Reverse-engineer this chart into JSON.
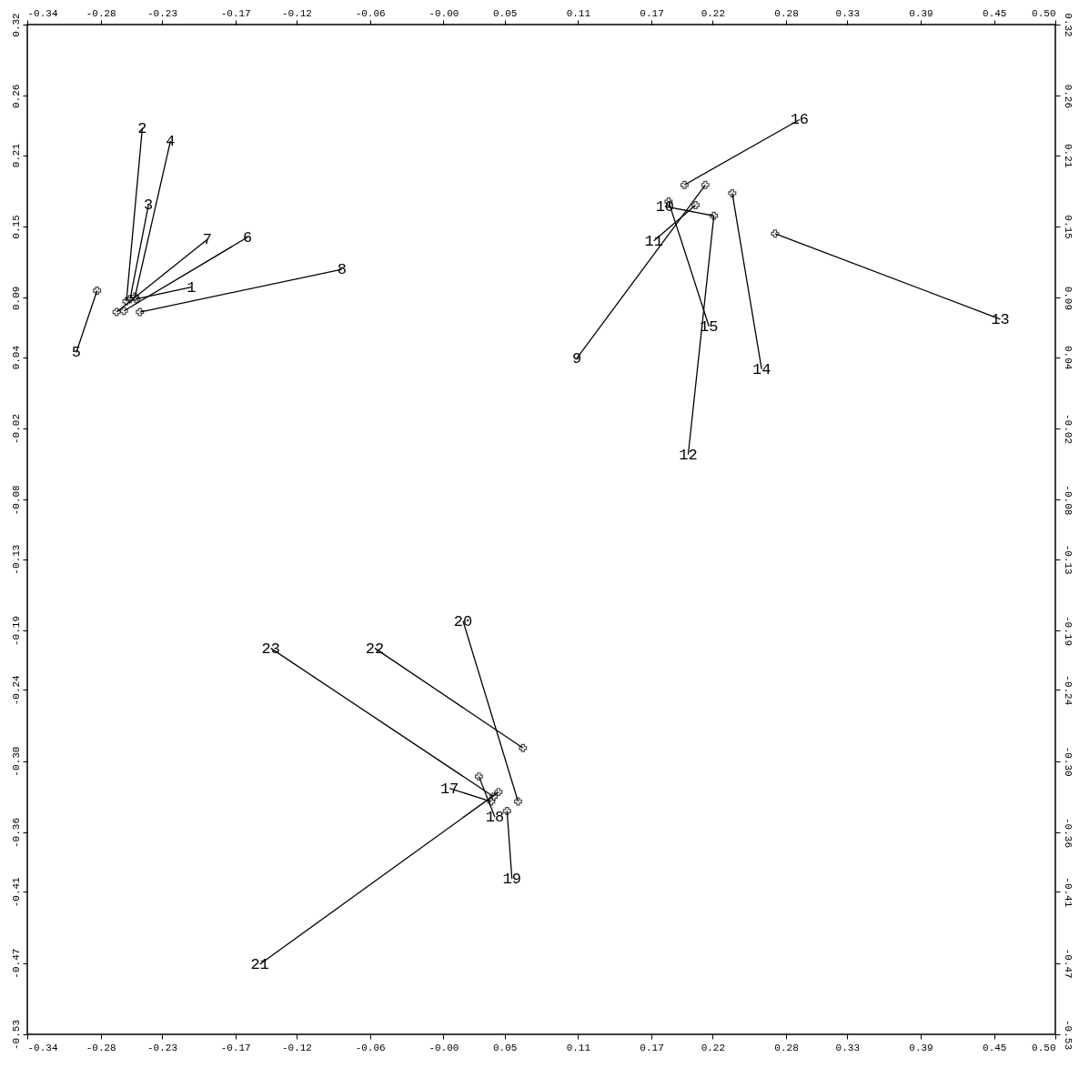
{
  "chart_data": {
    "type": "line",
    "grid": false,
    "legend": false,
    "line_style": "solid",
    "xlim": [
      -0.34,
      0.5
    ],
    "ylim": [
      -0.53,
      0.32
    ],
    "x2lim": [
      -0.34,
      0.5
    ],
    "y2lim": [
      -0.53,
      0.32
    ],
    "xticks": [
      -0.34,
      -0.28,
      -0.23,
      -0.17,
      -0.12,
      -0.06,
      {
        "value": 0,
        "label": "-0.00"
      },
      0.05,
      0.11,
      0.17,
      0.22,
      0.28,
      0.33,
      0.39,
      0.45,
      {
        "value": 0.5,
        "label": "0.50"
      }
    ],
    "x2ticks": [
      -0.34,
      -0.28,
      -0.23,
      -0.17,
      -0.12,
      -0.06,
      {
        "value": 0,
        "label": "-0.00"
      },
      0.05,
      0.11,
      0.17,
      0.22,
      0.28,
      0.33,
      0.39,
      0.45,
      {
        "value": 0.5,
        "label": "0.50"
      }
    ],
    "yticks": [
      0.32,
      0.26,
      0.21,
      0.15,
      0.09,
      0.04,
      -0.02,
      -0.08,
      -0.13,
      -0.19,
      -0.24,
      {
        "value": -0.3,
        "label": "-0.30"
      },
      -0.36,
      -0.41,
      -0.47,
      -0.53
    ],
    "y2ticks": [
      0.32,
      0.26,
      0.21,
      0.15,
      0.09,
      0.04,
      -0.02,
      -0.08,
      -0.13,
      -0.19,
      -0.24,
      {
        "value": -0.3,
        "label": "-0.30"
      },
      -0.36,
      -0.41,
      -0.47,
      -0.53
    ],
    "series": [
      {
        "name": "1",
        "color": "#000000",
        "x": [
          -0.251,
          -0.206
        ],
        "values": [
          0.089,
          0.099
        ]
      },
      {
        "name": "2",
        "color": "#000000",
        "x": [
          -0.259,
          -0.246
        ],
        "values": [
          0.087,
          0.233
        ]
      },
      {
        "name": "3",
        "color": "#000000",
        "x": [
          -0.256,
          -0.241
        ],
        "values": [
          0.089,
          0.168
        ]
      },
      {
        "name": "4",
        "color": "#000000",
        "x": [
          -0.252,
          -0.223
        ],
        "values": [
          0.091,
          0.222
        ]
      },
      {
        "name": "5",
        "color": "#000000",
        "x": [
          -0.283,
          -0.3
        ],
        "values": [
          0.096,
          0.044
        ]
      },
      {
        "name": "6",
        "color": "#000000",
        "x": [
          -0.261,
          -0.16
        ],
        "values": [
          0.079,
          0.141
        ]
      },
      {
        "name": "7",
        "color": "#000000",
        "x": [
          -0.267,
          -0.193
        ],
        "values": [
          0.078,
          0.139
        ]
      },
      {
        "name": "8",
        "color": "#000000",
        "x": [
          -0.248,
          -0.083
        ],
        "values": [
          0.078,
          0.114
        ]
      },
      {
        "name": "9",
        "color": "#000000",
        "x": [
          0.214,
          0.109
        ],
        "values": [
          0.185,
          0.039
        ]
      },
      {
        "name": "10",
        "color": "#000000",
        "x": [
          0.221,
          0.181
        ],
        "values": [
          0.159,
          0.167
        ]
      },
      {
        "name": "11",
        "color": "#000000",
        "x": [
          0.206,
          0.172
        ],
        "values": [
          0.168,
          0.138
        ]
      },
      {
        "name": "12",
        "color": "#000000",
        "x": [
          0.221,
          0.2
        ],
        "values": [
          0.159,
          -0.042
        ]
      },
      {
        "name": "13",
        "color": "#000000",
        "x": [
          0.271,
          0.455
        ],
        "values": [
          0.144,
          0.072
        ]
      },
      {
        "name": "14",
        "color": "#000000",
        "x": [
          0.236,
          0.26
        ],
        "values": [
          0.178,
          0.03
        ]
      },
      {
        "name": "15",
        "color": "#000000",
        "x": [
          0.184,
          0.217
        ],
        "values": [
          0.171,
          0.066
        ]
      },
      {
        "name": "16",
        "color": "#000000",
        "x": [
          0.197,
          0.291
        ],
        "values": [
          0.185,
          0.24
        ]
      },
      {
        "name": "17",
        "color": "#000000",
        "x": [
          0.039,
          0.005
        ],
        "values": [
          -0.334,
          -0.323
        ]
      },
      {
        "name": "18",
        "color": "#000000",
        "x": [
          0.029,
          0.042
        ],
        "values": [
          -0.313,
          -0.347
        ]
      },
      {
        "name": "19",
        "color": "#000000",
        "x": [
          0.052,
          0.056
        ],
        "values": [
          -0.342,
          -0.399
        ]
      },
      {
        "name": "20",
        "color": "#000000",
        "x": [
          0.061,
          0.016
        ],
        "values": [
          -0.334,
          -0.182
        ]
      },
      {
        "name": "21",
        "color": "#000000",
        "x": [
          0.045,
          -0.15
        ],
        "values": [
          -0.326,
          -0.471
        ]
      },
      {
        "name": "22",
        "color": "#000000",
        "x": [
          0.065,
          -0.056
        ],
        "values": [
          -0.289,
          -0.205
        ]
      },
      {
        "name": "23",
        "color": "#000000",
        "x": [
          0.041,
          -0.141
        ],
        "values": [
          -0.33,
          -0.205
        ]
      },
      {
        "type": "scatter",
        "marker": "cross",
        "color": "#000000",
        "x": [
          -0.251,
          -0.259,
          -0.256,
          -0.252,
          -0.283,
          -0.261,
          -0.267,
          -0.248,
          0.214,
          0.221,
          0.206,
          0.271,
          0.236,
          0.184,
          0.197,
          0.039,
          0.029,
          0.052,
          0.061,
          0.045,
          0.065,
          0.041
        ],
        "values": [
          0.089,
          0.087,
          0.089,
          0.091,
          0.096,
          0.079,
          0.078,
          0.078,
          0.185,
          0.159,
          0.168,
          0.144,
          0.178,
          0.171,
          0.185,
          -0.334,
          -0.313,
          -0.342,
          -0.334,
          -0.326,
          -0.289,
          -0.33
        ]
      }
    ]
  }
}
